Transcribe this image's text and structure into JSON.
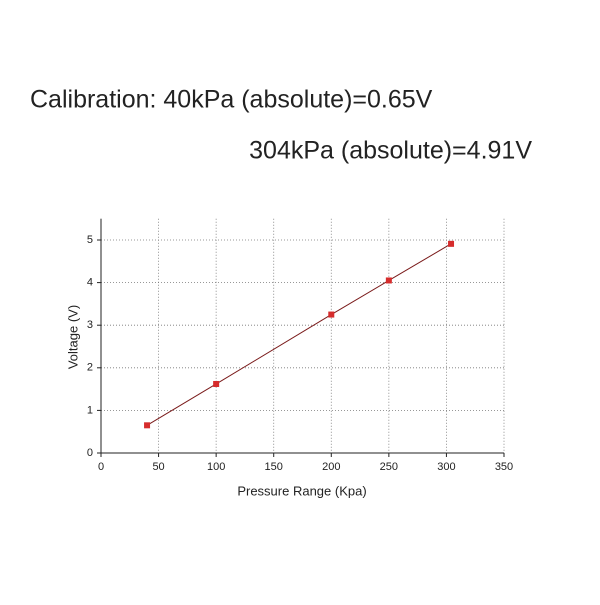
{
  "chart_data": {
    "type": "scatter",
    "annotations": [
      "Calibration: 40kPa (absolute)=0.65V",
      "304kPa (absolute)=4.91V"
    ],
    "annotation_color": "#a11d1d",
    "x_label": "Pressure Range (Kpa)",
    "y_label": "Voltage (V)",
    "series": [
      {
        "color": "#d62c2c",
        "line_color": "#7a1a1a",
        "x": [
          40,
          100,
          200,
          250,
          304
        ],
        "values": [
          0.65,
          1.62,
          3.25,
          4.05,
          4.91
        ]
      }
    ],
    "xlim": [
      0,
      350
    ],
    "xticks": [
      0,
      50,
      100,
      150,
      200,
      250,
      300,
      350
    ],
    "ylim": [
      0,
      5.5
    ],
    "yticks": [
      0,
      1,
      2,
      3,
      4,
      5
    ],
    "grid": true
  }
}
